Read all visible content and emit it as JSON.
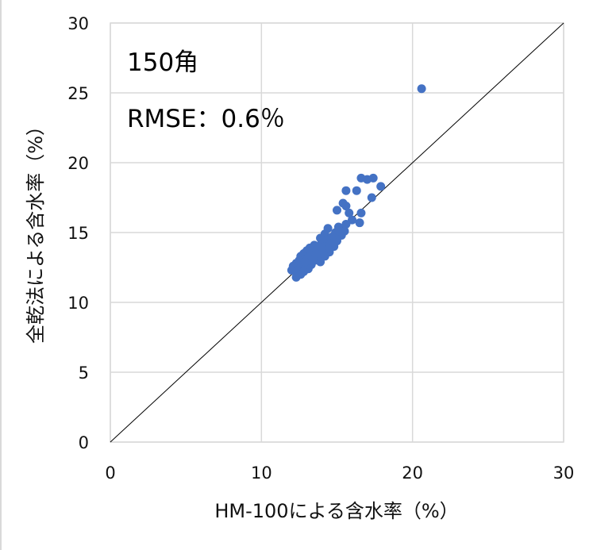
{
  "chart_data": {
    "type": "scatter",
    "xlabel": "HM-100による含水率（%）",
    "ylabel": "全乾法による含水率（%）",
    "xlim": [
      0,
      30
    ],
    "ylim": [
      0,
      30
    ],
    "xticks": [
      "0",
      "10",
      "20",
      "30"
    ],
    "yticks": [
      "0",
      "5",
      "10",
      "15",
      "20",
      "25",
      "30"
    ],
    "grid": true,
    "reference_line": "y = x",
    "annotations": [
      "150角",
      "RMSE：0.6％"
    ],
    "colors": {
      "points": "#4472c4",
      "grid": "#d9d9d9",
      "line": "#000000"
    },
    "series": [
      {
        "points": [
          [
            20.6,
            25.3
          ],
          [
            16.6,
            18.9
          ],
          [
            17.0,
            18.8
          ],
          [
            17.4,
            18.9
          ],
          [
            17.9,
            18.3
          ],
          [
            15.6,
            18.0
          ],
          [
            16.3,
            18.0
          ],
          [
            17.3,
            17.5
          ],
          [
            15.4,
            17.1
          ],
          [
            15.6,
            16.9
          ],
          [
            15.0,
            16.6
          ],
          [
            15.8,
            16.4
          ],
          [
            16.6,
            16.4
          ],
          [
            16.0,
            15.9
          ],
          [
            15.6,
            15.6
          ],
          [
            16.5,
            15.7
          ],
          [
            15.1,
            15.4
          ],
          [
            14.4,
            15.3
          ],
          [
            15.5,
            15.1
          ],
          [
            14.9,
            15.0
          ],
          [
            14.2,
            14.9
          ],
          [
            14.7,
            14.7
          ],
          [
            15.3,
            14.8
          ],
          [
            13.9,
            14.6
          ],
          [
            14.4,
            14.5
          ],
          [
            15.0,
            14.4
          ],
          [
            14.0,
            14.3
          ],
          [
            14.6,
            14.2
          ],
          [
            13.5,
            14.1
          ],
          [
            14.2,
            14.0
          ],
          [
            14.8,
            14.0
          ],
          [
            13.2,
            13.9
          ],
          [
            13.8,
            13.9
          ],
          [
            14.4,
            13.8
          ],
          [
            13.0,
            13.7
          ],
          [
            13.6,
            13.7
          ],
          [
            14.1,
            13.6
          ],
          [
            12.8,
            13.5
          ],
          [
            13.4,
            13.5
          ],
          [
            13.9,
            13.4
          ],
          [
            14.5,
            13.6
          ],
          [
            12.6,
            13.3
          ],
          [
            13.2,
            13.3
          ],
          [
            13.7,
            13.2
          ],
          [
            14.2,
            13.3
          ],
          [
            12.9,
            13.1
          ],
          [
            13.5,
            13.0
          ],
          [
            12.5,
            13.0
          ],
          [
            13.0,
            12.9
          ],
          [
            13.9,
            12.9
          ],
          [
            12.3,
            12.8
          ],
          [
            12.8,
            12.7
          ],
          [
            13.3,
            12.7
          ],
          [
            12.1,
            12.6
          ],
          [
            12.6,
            12.5
          ],
          [
            13.1,
            12.4
          ],
          [
            12.4,
            12.3
          ],
          [
            12.0,
            12.3
          ],
          [
            12.8,
            12.2
          ],
          [
            12.3,
            12.1
          ],
          [
            12.6,
            12.0
          ],
          [
            12.3,
            11.8
          ],
          [
            13.4,
            13.1
          ],
          [
            14.0,
            13.9
          ],
          [
            14.6,
            14.6
          ],
          [
            13.1,
            13.2
          ],
          [
            13.6,
            13.5
          ],
          [
            12.9,
            12.9
          ],
          [
            15.2,
            15.1
          ],
          [
            14.8,
            14.3
          ]
        ]
      }
    ]
  }
}
